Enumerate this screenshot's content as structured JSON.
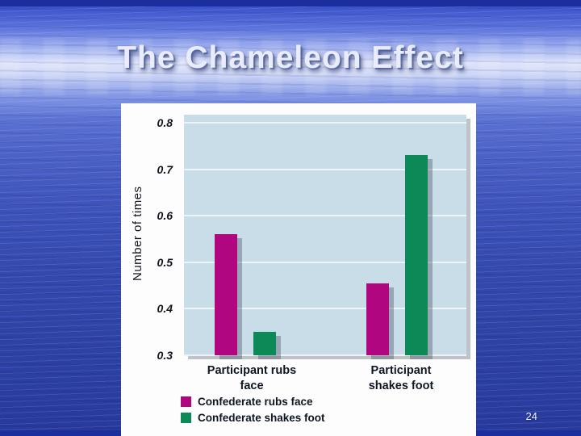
{
  "slide": {
    "title": "The Chameleon Effect",
    "page_number": "24"
  },
  "chart_data": {
    "type": "bar",
    "title": "",
    "xlabel": "",
    "ylabel": "Number of times",
    "ylim": [
      0.3,
      0.8
    ],
    "yticks": [
      0.8,
      0.7,
      0.6,
      0.5,
      0.4,
      0.3
    ],
    "categories": [
      "Participant rubs face",
      "Participant shakes foot"
    ],
    "series": [
      {
        "name": "Confederate rubs face",
        "color": "#b0067f",
        "values": [
          0.56,
          0.455
        ]
      },
      {
        "name": "Confederate shakes foot",
        "color": "#0b8a57",
        "values": [
          0.35,
          0.73
        ]
      }
    ],
    "grid": true,
    "legend_position": "bottom-left",
    "plot_background": "#c9dde9",
    "gridline_color": "#edf4f8"
  }
}
